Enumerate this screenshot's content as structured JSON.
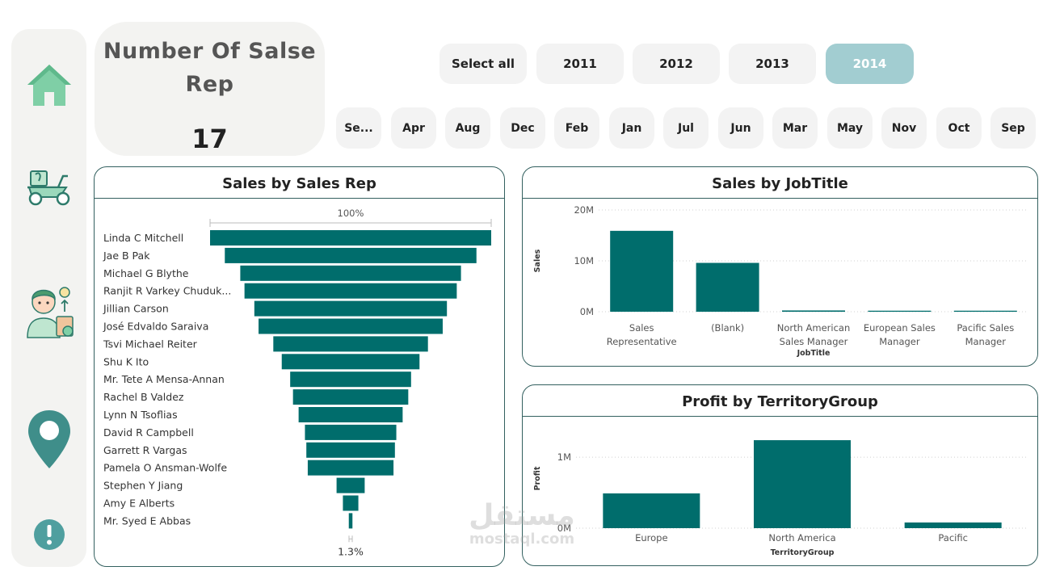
{
  "kpi": {
    "title": "Number Of Salse Rep",
    "value": "17"
  },
  "slicers": {
    "years": [
      {
        "label": "Select all",
        "active": false
      },
      {
        "label": "2011",
        "active": false
      },
      {
        "label": "2012",
        "active": false
      },
      {
        "label": "2013",
        "active": false
      },
      {
        "label": "2014",
        "active": true
      }
    ],
    "months": [
      "Se...",
      "Apr",
      "Aug",
      "Dec",
      "Feb",
      "Jan",
      "Jul",
      "Jun",
      "Mar",
      "May",
      "Nov",
      "Oct",
      "Sep"
    ]
  },
  "sidebar": {
    "icons": [
      "home-icon",
      "delivery-scooter-icon",
      "sales-person-icon",
      "location-pin-icon",
      "info-icon"
    ]
  },
  "colors": {
    "bar": "#006d6c",
    "active_slicer": "#a2cdd1",
    "panel_border": "#33605f",
    "sidebar_bg": "#f3f3f1"
  },
  "chart_data": [
    {
      "type": "funnel",
      "title": "Sales by Sales Rep",
      "top_label": "100%",
      "bottom_label": "1.3%",
      "categories": [
        "Linda C Mitchell",
        "Jae B Pak",
        "Michael G Blythe",
        "Ranjit R Varkey Chuduk...",
        "Jillian Carson",
        "José Edvaldo Saraiva",
        "Tsvi Michael Reiter",
        "Shu K Ito",
        "Mr. Tete A Mensa-Annan",
        "Rachel B Valdez",
        "Lynn N Tsoflias",
        "David R Campbell",
        "Garrett R Vargas",
        "Pamela O Ansman-Wolfe",
        "Stephen Y Jiang",
        "Amy E Alberts",
        "Mr. Syed E Abbas"
      ],
      "values": [
        100,
        89.5,
        78.5,
        75.5,
        68.5,
        65.5,
        55,
        49,
        43,
        41,
        37,
        32.5,
        31.5,
        30.5,
        10,
        5.5,
        1.3
      ]
    },
    {
      "type": "bar",
      "title": "Sales by JobTitle",
      "categories": [
        [
          "Sales",
          "Representative"
        ],
        [
          "(Blank)"
        ],
        [
          "North American",
          "Sales Manager"
        ],
        [
          "European Sales",
          "Manager"
        ],
        [
          "Pacific Sales",
          "Manager"
        ]
      ],
      "values": [
        15900000,
        9600000,
        250000,
        200000,
        200000
      ],
      "xlabel": "JobTitle",
      "ylabel": "Sales",
      "ylim": [
        0,
        20000000
      ],
      "yticks": [
        "0M",
        "10M",
        "20M"
      ],
      "ytick_values": [
        0,
        10000000,
        20000000
      ],
      "grid": true
    },
    {
      "type": "bar",
      "title": "Profit by TerritoryGroup",
      "categories": [
        [
          "Europe"
        ],
        [
          "North America"
        ],
        [
          "Pacific"
        ]
      ],
      "values": [
        490000,
        1240000,
        80000
      ],
      "xlabel": "TerritoryGroup",
      "ylabel": "Profit",
      "ylim": [
        0,
        1400000
      ],
      "yticks": [
        "0M",
        "1M"
      ],
      "ytick_values": [
        0,
        1000000
      ],
      "grid": true
    }
  ],
  "watermark": {
    "arabic": "مستقل",
    "latin": "mostaql.com"
  }
}
